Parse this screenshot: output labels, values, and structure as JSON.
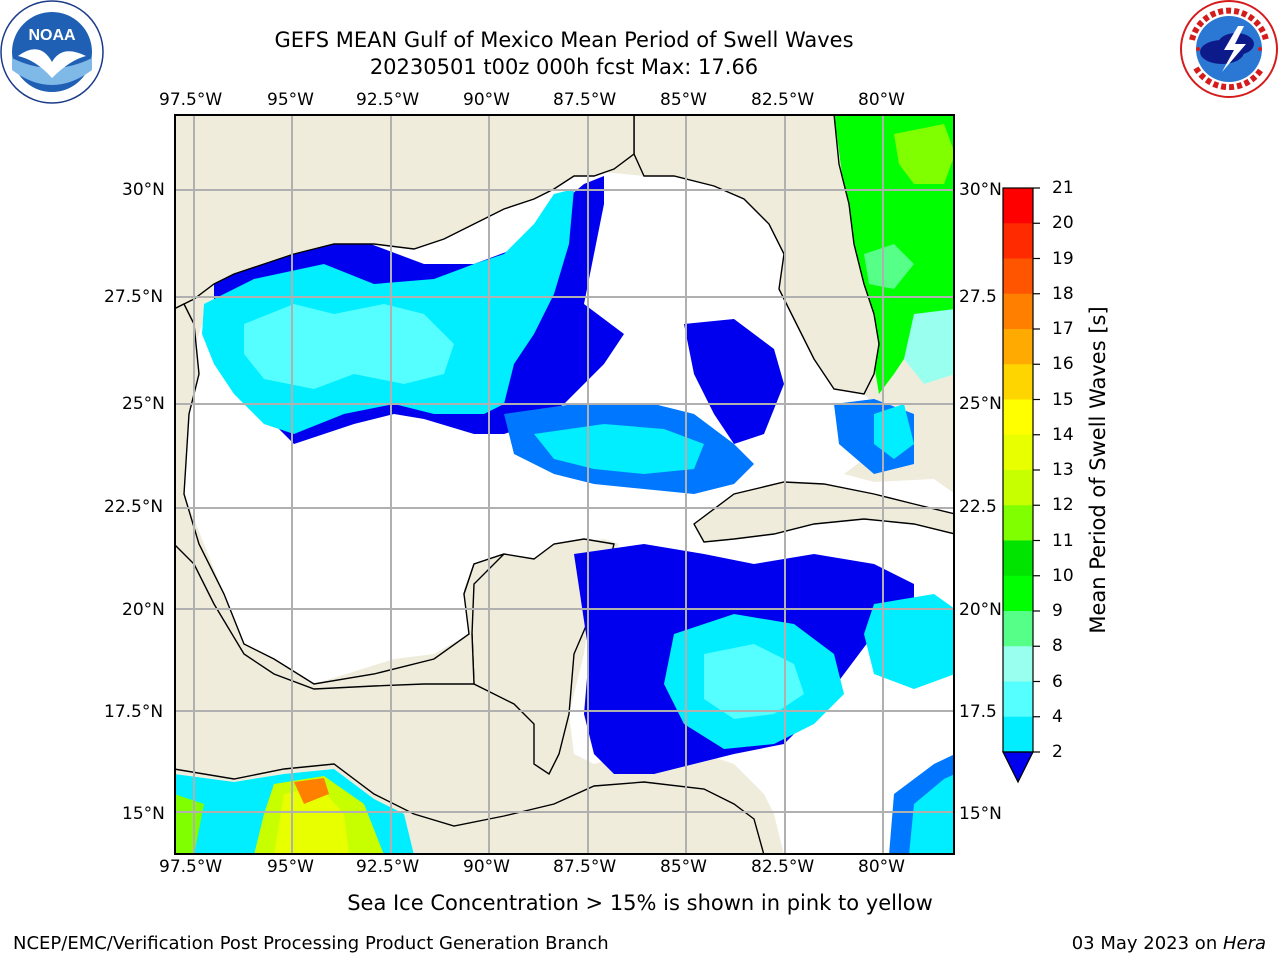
{
  "header": {
    "title_line1": "GEFS MEAN Gulf of Mexico Mean Period of Swell Waves",
    "title_line2": "20230501 t00z 000h fcst   Max: 17.66",
    "left_logo": {
      "icon": "noaa-logo",
      "text": "NOAA",
      "ring_text": "NATIONAL OCEANIC AND ATMOSPHERIC ADMINISTRATION · U.S. DEPARTMENT OF COMMERCE"
    },
    "right_logo": {
      "icon": "nws-logo",
      "ring_text": "NATIONAL WEATHER SERVICE"
    }
  },
  "map": {
    "lon_range": [
      -98.0,
      -78.0
    ],
    "lat_range": [
      14.0,
      31.5
    ],
    "gridlines": true,
    "lon_ticks": [
      "97.5°W",
      "95°W",
      "92.5°W",
      "90°W",
      "87.5°W",
      "85°W",
      "82.5°W",
      "80°W"
    ],
    "lat_ticks_left": [
      "30°N",
      "27.5°N",
      "25°N",
      "22.5°N",
      "20°N",
      "17.5°N",
      "15°N"
    ],
    "lat_ticks_right": [
      "30°N",
      "27.5",
      "25°N",
      "22.5",
      "20°N",
      "17.5",
      "15°N"
    ],
    "colors": {
      "land": "#efecdc",
      "ocean_nodata": "#ffffff",
      "grid": "#b0b0b0",
      "coast": "#000000"
    }
  },
  "colorbar": {
    "label": "Mean Period of Swell Waves [s]",
    "ticks": [
      "21",
      "20",
      "19",
      "18",
      "17",
      "16",
      "15",
      "14",
      "13",
      "12",
      "11",
      "10",
      "9",
      "8",
      "6",
      "4",
      "2"
    ],
    "colors": [
      "#ff0000",
      "#ff2a00",
      "#ff5500",
      "#ff8000",
      "#ffaa00",
      "#ffd500",
      "#ffff00",
      "#e8ff00",
      "#c8ff00",
      "#80ff00",
      "#00e400",
      "#00ff00",
      "#55ff88",
      "#99ffee",
      "#55ffff",
      "#00eeff",
      "#0077ff",
      "#0000ee"
    ],
    "extend_min": true
  },
  "footer": {
    "note": "Sea Ice Concentration > 15% is shown in pink to yellow",
    "credit_left": "NCEP/EMC/Verification Post Processing Product Generation Branch",
    "credit_date": "03 May 2023 on ",
    "credit_host": "Hera"
  }
}
